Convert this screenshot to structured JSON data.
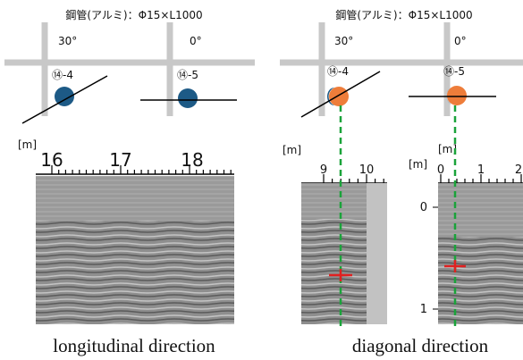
{
  "left": {
    "title": "鋼管(アルミ)：Φ15×L1000",
    "angles": [
      "30°",
      "0°"
    ],
    "labels": [
      "⑭-4",
      "⑭-5"
    ],
    "unit": "[m]",
    "x_ticks": [
      "16",
      "17",
      "18"
    ],
    "caption": "longitudinal direction"
  },
  "right": {
    "title": "鋼管(アルミ)：Φ15×L1000",
    "angles": [
      "30°",
      "0°"
    ],
    "labels": [
      "⑭-4",
      "⑭-5"
    ],
    "unit_a": "[m]",
    "unit_b": "[m]",
    "unit_c": "[m]",
    "x_ticks_a": [
      "9",
      "10"
    ],
    "x_ticks_b": [
      "0",
      "1",
      "2"
    ],
    "y_ticks_b": [
      "0",
      "1"
    ],
    "caption": "diagonal direction"
  }
}
